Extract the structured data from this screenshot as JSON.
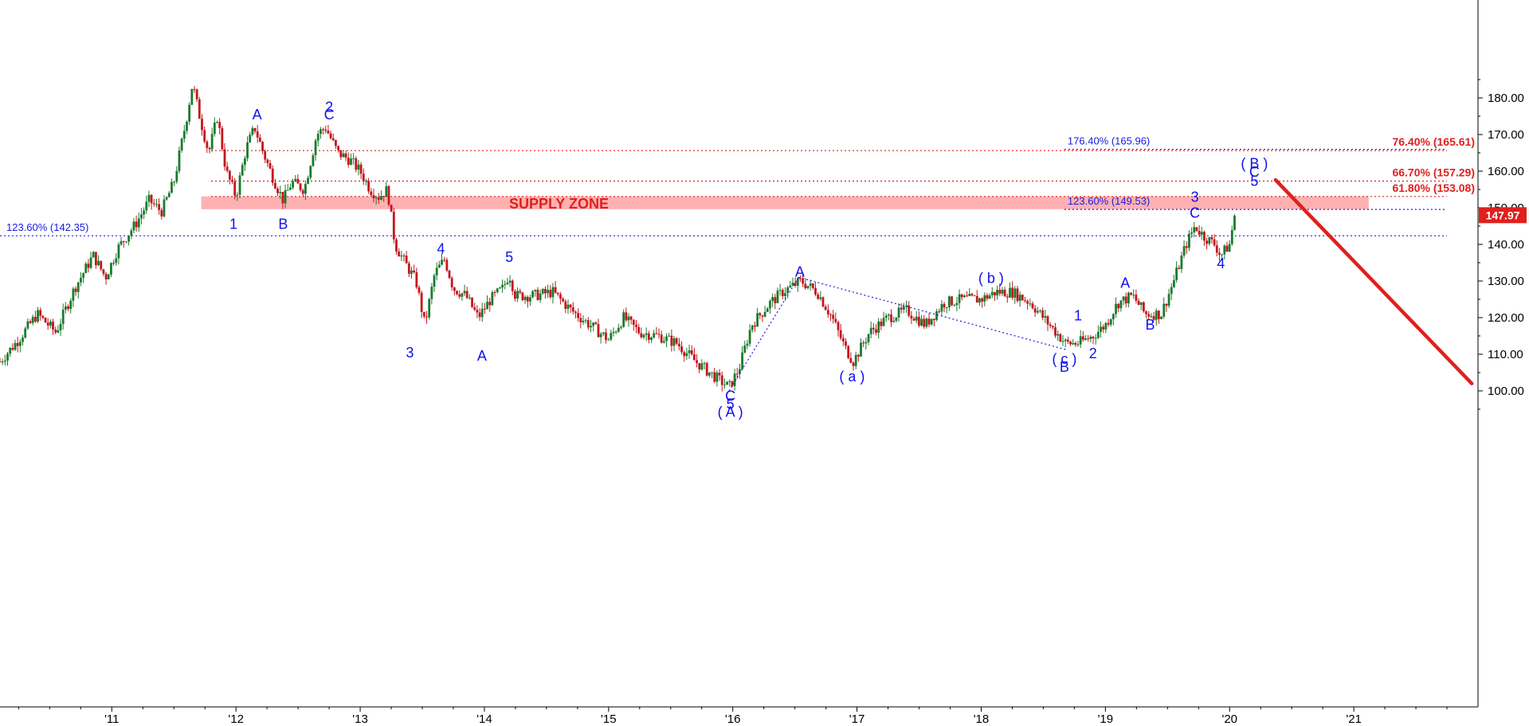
{
  "chart_data": {
    "type": "candlestick",
    "title": "",
    "xlabel": "",
    "ylabel": "",
    "ylim": [
      92,
      187
    ],
    "y_ticks": [
      "100.00",
      "110.00",
      "120.00",
      "130.00",
      "140.00",
      "150.00",
      "160.00",
      "170.00",
      "180.00"
    ],
    "x_ticks": [
      "'11",
      "'12",
      "'13",
      "'14",
      "'15",
      "'16",
      "'17",
      "'18",
      "'19",
      "'20",
      "'21"
    ],
    "x_tick_positions": [
      2011,
      2012,
      2013,
      2014,
      2015,
      2016,
      2017,
      2018,
      2019,
      2020,
      2021
    ],
    "xlim": [
      2010.1,
      2022.0
    ],
    "last_price": 147.97,
    "last_price_label": "147.97",
    "up_color": "#1b7a2e",
    "down_color": "#c4161c",
    "price_path": [
      [
        2010.1,
        108
      ],
      [
        2010.25,
        114
      ],
      [
        2010.4,
        121
      ],
      [
        2010.55,
        116
      ],
      [
        2010.7,
        128
      ],
      [
        2010.85,
        137
      ],
      [
        2010.95,
        131
      ],
      [
        2011.05,
        139
      ],
      [
        2011.2,
        146
      ],
      [
        2011.3,
        152
      ],
      [
        2011.4,
        149
      ],
      [
        2011.5,
        157
      ],
      [
        2011.6,
        174
      ],
      [
        2011.65,
        184
      ],
      [
        2011.7,
        176
      ],
      [
        2011.78,
        165
      ],
      [
        2011.85,
        175
      ],
      [
        2011.92,
        160
      ],
      [
        2012.0,
        153
      ],
      [
        2012.08,
        166
      ],
      [
        2012.15,
        172
      ],
      [
        2012.22,
        165
      ],
      [
        2012.3,
        158
      ],
      [
        2012.38,
        152
      ],
      [
        2012.45,
        157
      ],
      [
        2012.55,
        155
      ],
      [
        2012.65,
        170
      ],
      [
        2012.72,
        172
      ],
      [
        2012.82,
        165
      ],
      [
        2012.92,
        163
      ],
      [
        2013.0,
        160
      ],
      [
        2013.08,
        155
      ],
      [
        2013.15,
        153
      ],
      [
        2013.22,
        155
      ],
      [
        2013.28,
        140
      ],
      [
        2013.36,
        135
      ],
      [
        2013.45,
        130
      ],
      [
        2013.52,
        118
      ],
      [
        2013.6,
        132
      ],
      [
        2013.68,
        136
      ],
      [
        2013.75,
        128
      ],
      [
        2013.85,
        126
      ],
      [
        2013.95,
        120
      ],
      [
        2014.05,
        125
      ],
      [
        2014.15,
        128
      ],
      [
        2014.2,
        132
      ],
      [
        2014.25,
        126
      ],
      [
        2014.4,
        126
      ],
      [
        2014.55,
        127
      ],
      [
        2014.7,
        122
      ],
      [
        2014.85,
        118
      ],
      [
        2015.0,
        114
      ],
      [
        2015.12,
        120
      ],
      [
        2015.25,
        116
      ],
      [
        2015.4,
        115
      ],
      [
        2015.55,
        113
      ],
      [
        2015.7,
        108
      ],
      [
        2015.85,
        104
      ],
      [
        2015.97,
        101
      ],
      [
        2016.05,
        106
      ],
      [
        2016.15,
        118
      ],
      [
        2016.3,
        124
      ],
      [
        2016.4,
        127
      ],
      [
        2016.55,
        130
      ],
      [
        2016.68,
        127
      ],
      [
        2016.8,
        120
      ],
      [
        2016.9,
        112
      ],
      [
        2016.97,
        108
      ],
      [
        2017.1,
        116
      ],
      [
        2017.25,
        120
      ],
      [
        2017.4,
        122
      ],
      [
        2017.55,
        118
      ],
      [
        2017.7,
        124
      ],
      [
        2017.85,
        125
      ],
      [
        2018.0,
        125
      ],
      [
        2018.12,
        127
      ],
      [
        2018.25,
        127
      ],
      [
        2018.4,
        124
      ],
      [
        2018.55,
        118
      ],
      [
        2018.68,
        113
      ],
      [
        2018.78,
        113
      ],
      [
        2018.9,
        115
      ],
      [
        2019.0,
        118
      ],
      [
        2019.1,
        124
      ],
      [
        2019.22,
        126
      ],
      [
        2019.32,
        121
      ],
      [
        2019.45,
        121
      ],
      [
        2019.55,
        130
      ],
      [
        2019.65,
        140
      ],
      [
        2019.72,
        145
      ],
      [
        2019.8,
        142
      ],
      [
        2019.88,
        140
      ],
      [
        2019.93,
        137
      ],
      [
        2020.0,
        140
      ],
      [
        2020.04,
        148
      ]
    ],
    "wave_labels": [
      {
        "text": "A",
        "x": 2012.17,
        "y": 175.4
      },
      {
        "text": "2",
        "x": 2012.75,
        "y": 177.5
      },
      {
        "text": "C",
        "x": 2012.75,
        "y": 175.4
      },
      {
        "text": "1",
        "x": 2011.98,
        "y": 145.5
      },
      {
        "text": "B",
        "x": 2012.38,
        "y": 145.5
      },
      {
        "text": "4",
        "x": 2013.65,
        "y": 138.8
      },
      {
        "text": "5",
        "x": 2014.2,
        "y": 136.5
      },
      {
        "text": "3",
        "x": 2013.4,
        "y": 110.4
      },
      {
        "text": "A",
        "x": 2013.98,
        "y": 109.6
      },
      {
        "text": "A",
        "x": 2016.54,
        "y": 132.5
      },
      {
        "text": "( b )",
        "x": 2018.08,
        "y": 130.8
      },
      {
        "text": "1",
        "x": 2018.78,
        "y": 120.5
      },
      {
        "text": "A",
        "x": 2019.16,
        "y": 129.5
      },
      {
        "text": "( c )",
        "x": 2018.67,
        "y": 108.7
      },
      {
        "text": "2",
        "x": 2018.9,
        "y": 110.2
      },
      {
        "text": "B",
        "x": 2018.67,
        "y": 106.5
      },
      {
        "text": "B",
        "x": 2019.36,
        "y": 118.0
      },
      {
        "text": "( a )",
        "x": 2016.96,
        "y": 103.9
      },
      {
        "text": "C",
        "x": 2015.98,
        "y": 98.6
      },
      {
        "text": "5",
        "x": 2015.98,
        "y": 96.4
      },
      {
        "text": "( A )",
        "x": 2015.98,
        "y": 94.2
      },
      {
        "text": "3",
        "x": 2019.72,
        "y": 152.9
      },
      {
        "text": "C",
        "x": 2019.72,
        "y": 148.6
      },
      {
        "text": "4",
        "x": 2019.93,
        "y": 134.8
      },
      {
        "text": "( B )",
        "x": 2020.2,
        "y": 162.1
      },
      {
        "text": "C",
        "x": 2020.2,
        "y": 159.8
      },
      {
        "text": "5",
        "x": 2020.2,
        "y": 157.3
      }
    ],
    "horizontal_levels": [
      {
        "label": "123.60% (142.35)",
        "value": 142.35,
        "color": "#1a1adf",
        "style": "dotted",
        "label_side": "left",
        "x_from": 2010.1,
        "x_to": 2021.75
      },
      {
        "label": "123.60% (149.53)",
        "value": 149.53,
        "color": "#1a1adf",
        "style": "dotted",
        "label_side": "mid",
        "x_from": 2018.67,
        "x_to": 2021.75
      },
      {
        "label": "176.40% (165.96)",
        "value": 165.96,
        "color": "#1a1adf",
        "style": "dotted",
        "label_side": "mid",
        "x_from": 2018.67,
        "x_to": 2021.75
      },
      {
        "label": "61.80% (153.08)",
        "value": 153.08,
        "color": "#e0201c",
        "style": "dotted",
        "label_side": "right",
        "x_from": 2011.8,
        "x_to": 2021.75
      },
      {
        "label": "66.70% (157.29)",
        "value": 157.29,
        "color": "#e0201c",
        "style": "dotted",
        "label_side": "right",
        "x_from": 2011.8,
        "x_to": 2021.75
      },
      {
        "label": "76.40% (165.61)",
        "value": 165.61,
        "color": "#e0201c",
        "style": "dotted",
        "label_side": "right",
        "x_from": 2011.8,
        "x_to": 2021.75
      }
    ],
    "supply_zone": {
      "label": "SUPPLY ZONE",
      "y_low": 149.6,
      "y_high": 153.1,
      "x_from": 2011.72,
      "x_to": 2021.12,
      "color": "#ffb1b1"
    },
    "trend_lines": [
      {
        "from": [
          2016.53,
          131.0
        ],
        "to": [
          2018.69,
          111.2
        ],
        "color": "#1a1adf",
        "style": "dotted"
      },
      {
        "from": [
          2015.97,
          100.0
        ],
        "to": [
          2016.53,
          131.0
        ],
        "color": "#1a1adf",
        "style": "dotted"
      }
    ],
    "projection_line": {
      "from": [
        2020.37,
        157.6
      ],
      "to": [
        2021.95,
        102.0
      ],
      "color": "#e0201c"
    }
  }
}
